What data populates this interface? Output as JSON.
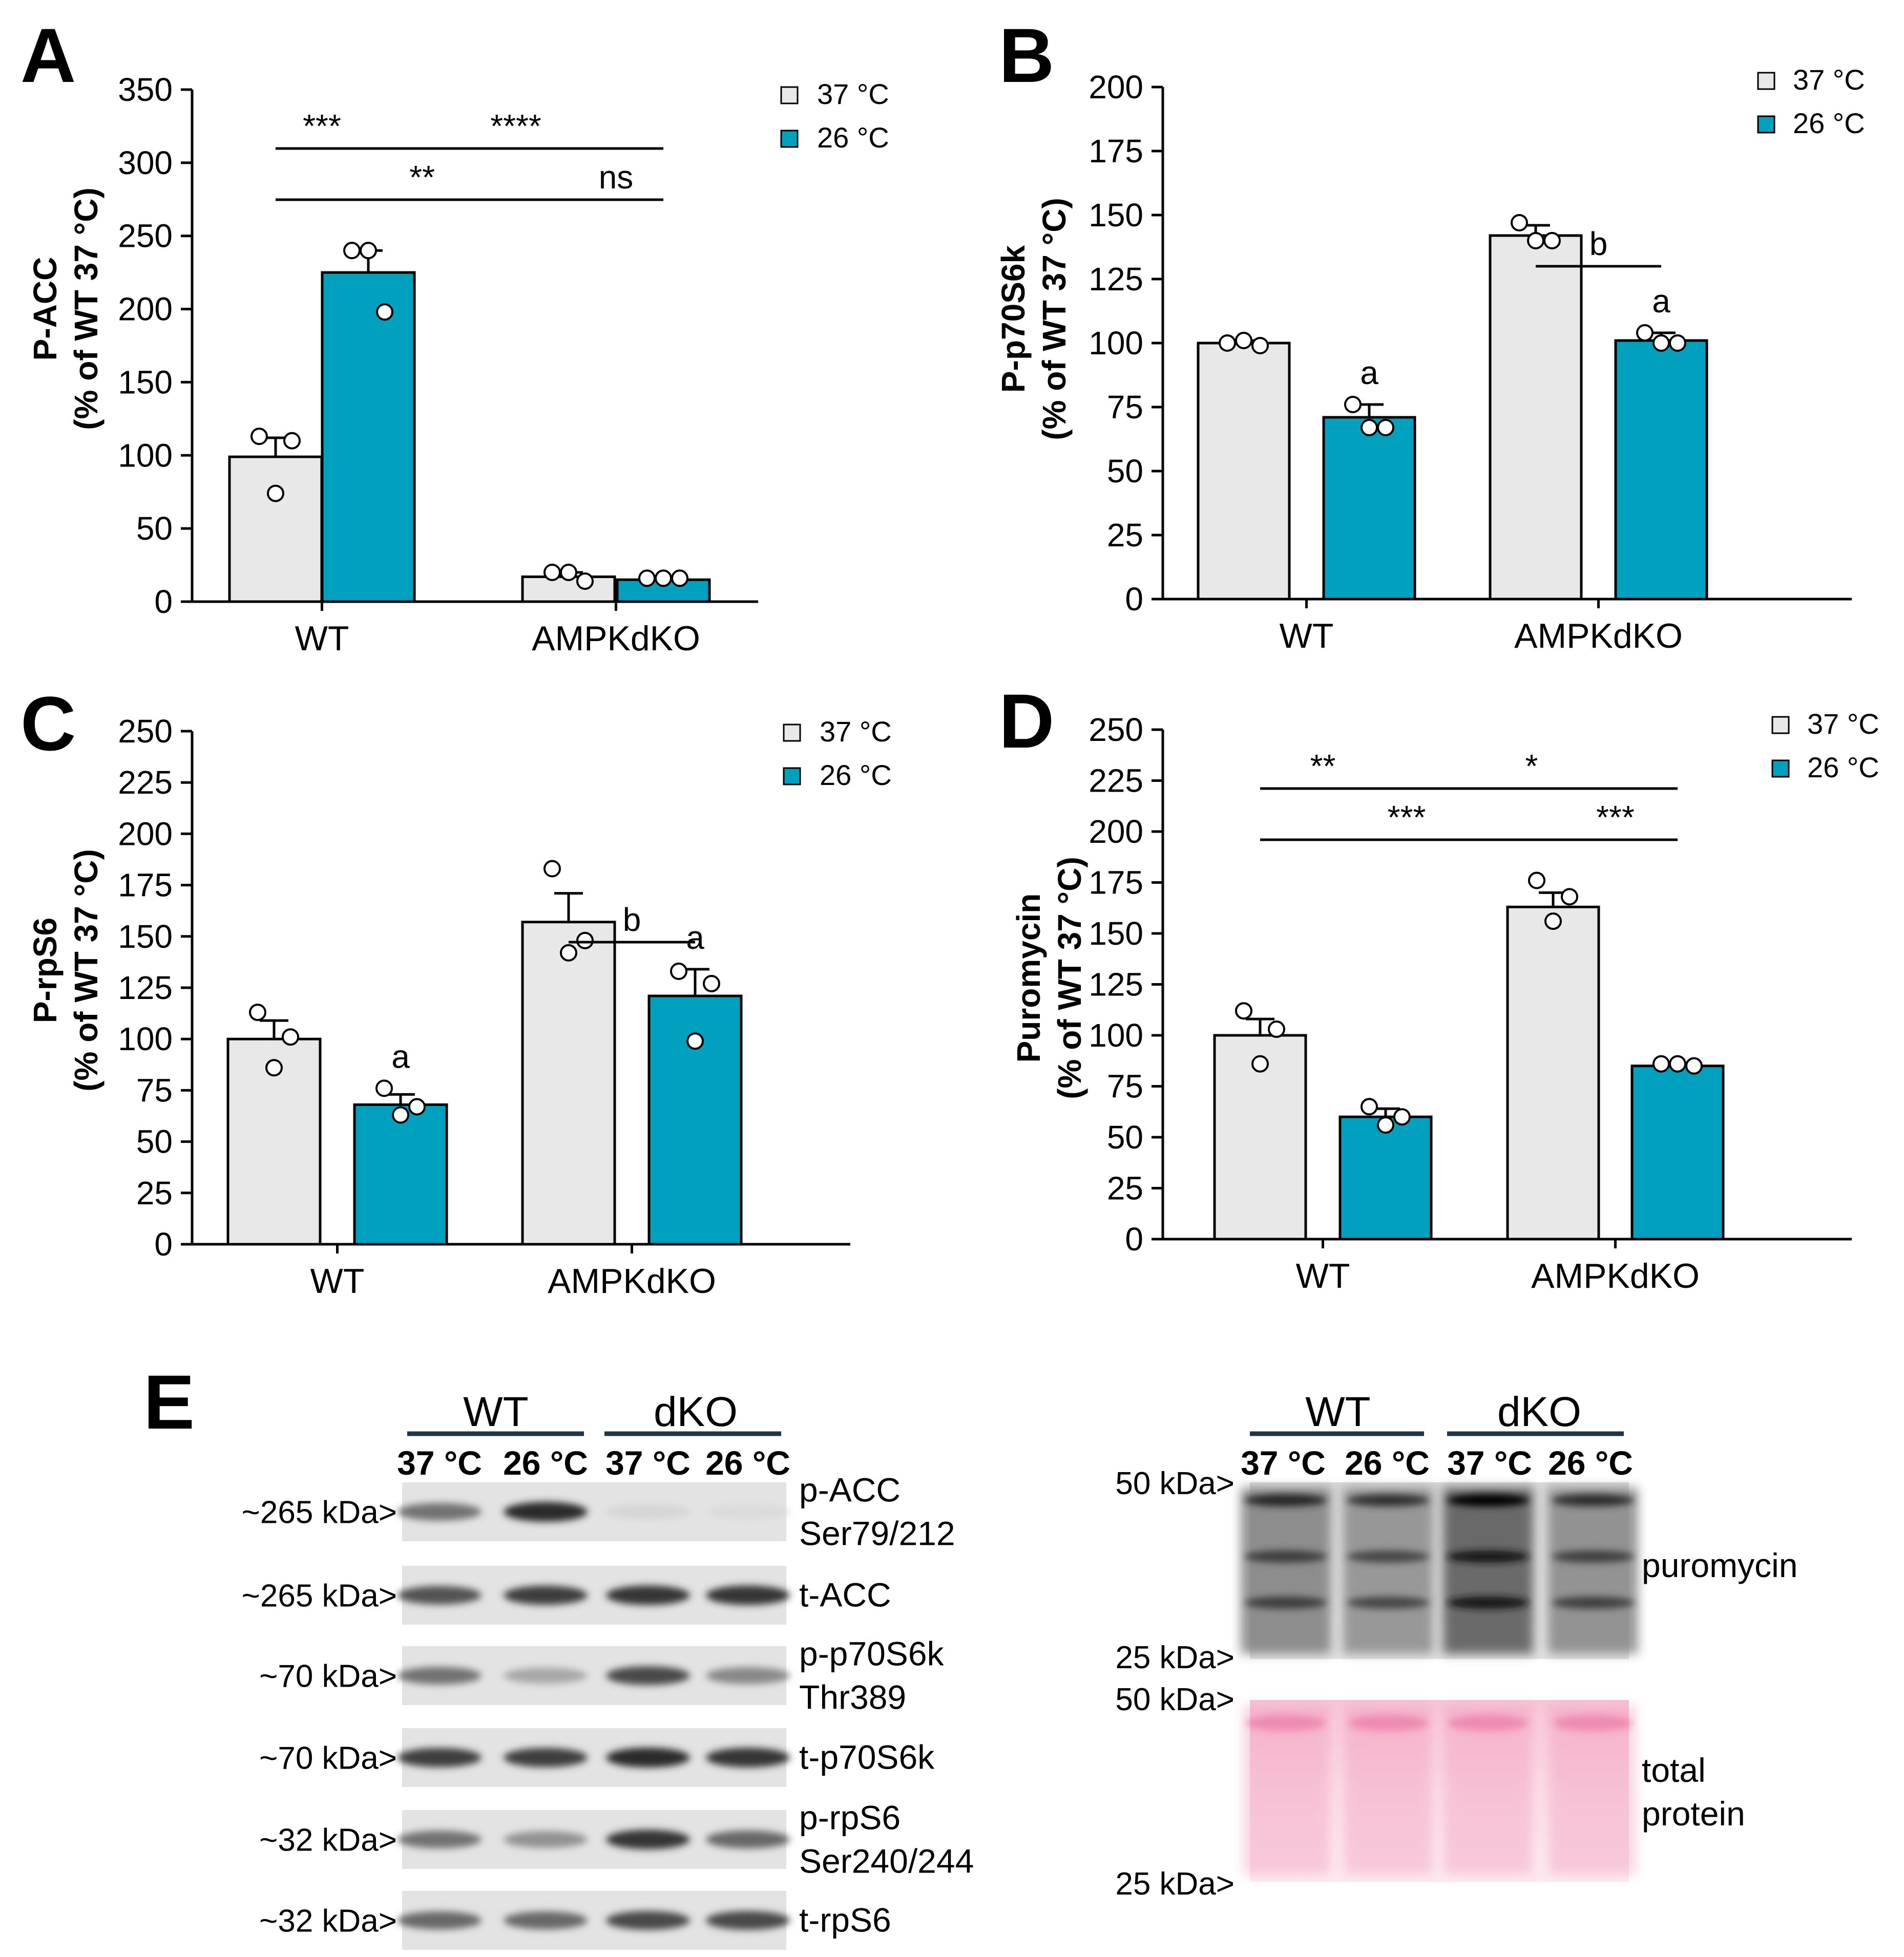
{
  "colors": {
    "bar_37": "#e8e8e8",
    "bar_26": "#00a0be",
    "stroke": "#000000",
    "ponceau": "#f2a6c4"
  },
  "chart_data": [
    {
      "id": "A",
      "panel_label": "A",
      "type": "bar",
      "ylabel_main": "P-ACC",
      "ylabel_sub": "(% of WT 37 °C)",
      "ylim": [
        0,
        350
      ],
      "yticks": [
        0,
        50,
        100,
        150,
        200,
        250,
        300,
        350
      ],
      "categories": [
        "WT",
        "AMPKdKO"
      ],
      "legend": [
        "37 °C",
        "26 °C"
      ],
      "series": [
        {
          "name": "37 °C",
          "values": [
            99,
            17
          ],
          "errors": [
            13,
            3
          ],
          "points": [
            [
              113,
              74,
              110
            ],
            [
              20,
              20,
              14
            ]
          ]
        },
        {
          "name": "26 °C",
          "values": [
            225,
            15
          ],
          "errors": [
            15,
            2
          ],
          "points": [
            [
              240,
              240,
              198
            ],
            [
              16,
              16,
              16
            ]
          ]
        }
      ],
      "brackets": [
        {
          "from": [
            0,
            0
          ],
          "to": [
            0,
            1
          ],
          "level": 3,
          "label": "***",
          "split": true
        },
        {
          "from": [
            0,
            1
          ],
          "to": [
            1,
            1
          ],
          "level": 3,
          "label": "****"
        },
        {
          "from": [
            0,
            0
          ],
          "to": [
            1,
            0
          ],
          "level": 2,
          "label": "**",
          "split": true
        },
        {
          "from": [
            1,
            0
          ],
          "to": [
            1,
            1
          ],
          "level": 2,
          "label": "ns"
        }
      ],
      "letters": []
    },
    {
      "id": "B",
      "panel_label": "B",
      "type": "bar",
      "ylabel_main": "P-p70S6k",
      "ylabel_sub": "(% of WT 37 °C)",
      "ylim": [
        0,
        200
      ],
      "yticks": [
        0,
        25,
        50,
        75,
        100,
        125,
        150,
        175,
        200
      ],
      "categories": [
        "WT",
        "AMPKdKO"
      ],
      "legend": [
        "37 °C",
        "26 °C"
      ],
      "series": [
        {
          "name": "37 °C",
          "values": [
            100,
            142
          ],
          "errors": [
            1,
            4
          ],
          "points": [
            [
              100,
              101,
              99
            ],
            [
              147,
              140,
              140
            ]
          ]
        },
        {
          "name": "26 °C",
          "values": [
            71,
            101
          ],
          "errors": [
            5,
            3
          ],
          "points": [
            [
              76,
              67,
              67
            ],
            [
              104,
              100,
              100
            ]
          ]
        }
      ],
      "brackets": [
        {
          "from": [
            1,
            0
          ],
          "to": [
            1,
            1
          ],
          "level": 1,
          "label": "b"
        }
      ],
      "letters": [
        {
          "at": [
            0,
            1
          ],
          "label": "a"
        },
        {
          "at": [
            1,
            1
          ],
          "label": "a"
        }
      ]
    },
    {
      "id": "C",
      "panel_label": "C",
      "type": "bar",
      "ylabel_main": "P-rpS6",
      "ylabel_sub": "(% of WT 37 °C)",
      "ylim": [
        0,
        250
      ],
      "yticks": [
        0,
        25,
        50,
        75,
        100,
        125,
        150,
        175,
        200,
        225,
        250
      ],
      "categories": [
        "WT",
        "AMPKdKO"
      ],
      "legend": [
        "37 °C",
        "26 °C"
      ],
      "series": [
        {
          "name": "37 °C",
          "values": [
            100,
            157
          ],
          "errors": [
            9,
            14
          ],
          "points": [
            [
              113,
              86,
              101
            ],
            [
              183,
              142,
              148
            ]
          ]
        },
        {
          "name": "26 °C",
          "values": [
            68,
            121
          ],
          "errors": [
            5,
            13
          ],
          "points": [
            [
              76,
              63,
              67
            ],
            [
              133,
              99,
              127
            ]
          ]
        }
      ],
      "brackets": [
        {
          "from": [
            1,
            0
          ],
          "to": [
            1,
            1
          ],
          "level": 1,
          "label": "b"
        }
      ],
      "letters": [
        {
          "at": [
            0,
            1
          ],
          "label": "a"
        },
        {
          "at": [
            1,
            1
          ],
          "label": "a"
        }
      ]
    },
    {
      "id": "D",
      "panel_label": "D",
      "type": "bar",
      "ylabel_main": "Puromycin",
      "ylabel_sub": "(% of WT 37 °C)",
      "ylim": [
        0,
        250
      ],
      "yticks": [
        0,
        25,
        50,
        75,
        100,
        125,
        150,
        175,
        200,
        225,
        250
      ],
      "categories": [
        "WT",
        "AMPKdKO"
      ],
      "legend": [
        "37 °C",
        "26 °C"
      ],
      "series": [
        {
          "name": "37 °C",
          "values": [
            100,
            163
          ],
          "errors": [
            8,
            7
          ],
          "points": [
            [
              112,
              86,
              103
            ],
            [
              176,
              156,
              168
            ]
          ]
        },
        {
          "name": "26 °C",
          "values": [
            60,
            85
          ],
          "errors": [
            4,
            1
          ],
          "points": [
            [
              65,
              56,
              60
            ],
            [
              86,
              86,
              85
            ]
          ]
        }
      ],
      "brackets": [
        {
          "from": [
            0,
            0
          ],
          "to": [
            0,
            1
          ],
          "level": 3,
          "label": "**",
          "split": true
        },
        {
          "from": [
            0,
            1
          ],
          "to": [
            1,
            1
          ],
          "level": 3,
          "label": "*"
        },
        {
          "from": [
            0,
            0
          ],
          "to": [
            1,
            0
          ],
          "level": 2,
          "label": "***",
          "split": true
        },
        {
          "from": [
            1,
            0
          ],
          "to": [
            1,
            1
          ],
          "level": 2,
          "label": "***"
        }
      ],
      "letters": []
    }
  ],
  "panel_e": {
    "label": "E",
    "left": {
      "group_labels": [
        "WT",
        "dKO"
      ],
      "lane_labels": [
        "37 °C",
        "26 °C",
        "37 °C",
        "26 °C"
      ],
      "rows": [
        {
          "marker": "~265 kDa>",
          "label_lines": [
            "p-ACC",
            "Ser79/212"
          ],
          "intensities": [
            0.55,
            0.9,
            0.08,
            0.05
          ]
        },
        {
          "marker": "~265 kDa>",
          "label_lines": [
            "t-ACC"
          ],
          "intensities": [
            0.7,
            0.8,
            0.85,
            0.85
          ]
        },
        {
          "marker": "~70 kDa>",
          "label_lines": [
            "p-p70S6k",
            "Thr389"
          ],
          "intensities": [
            0.55,
            0.3,
            0.75,
            0.45
          ]
        },
        {
          "marker": "~70 kDa>",
          "label_lines": [
            "t-p70S6k"
          ],
          "intensities": [
            0.8,
            0.8,
            0.9,
            0.85
          ]
        },
        {
          "marker": "~32 kDa>",
          "label_lines": [
            "p-rpS6",
            "Ser240/244"
          ],
          "intensities": [
            0.55,
            0.4,
            0.85,
            0.6
          ]
        },
        {
          "marker": "~32 kDa>",
          "label_lines": [
            "t-rpS6"
          ],
          "intensities": [
            0.6,
            0.6,
            0.75,
            0.75
          ]
        }
      ]
    },
    "right": {
      "group_labels": [
        "WT",
        "dKO"
      ],
      "lane_labels": [
        "37 °C",
        "26 °C",
        "37 °C",
        "26 °C"
      ],
      "markers": [
        "50 kDa>",
        "25 kDa>",
        "50 kDa>",
        "25 kDa>"
      ],
      "puromycin_label": "puromycin",
      "total_label_lines": [
        "total",
        "protein"
      ],
      "puromycin_intensities": [
        0.6,
        0.5,
        0.95,
        0.55
      ]
    }
  }
}
